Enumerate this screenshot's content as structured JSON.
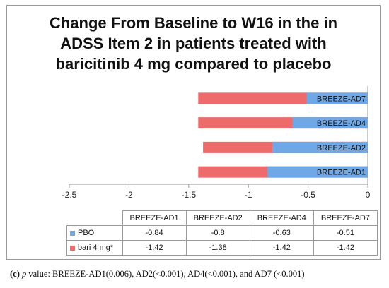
{
  "title_lines": [
    "Change From Baseline to W16 in the in",
    "ADSS Item 2 in patients treated with",
    "baricitinib 4 mg compared to placebo"
  ],
  "colors": {
    "pbo": "#6fa8e6",
    "bari": "#ee6b6b",
    "axis": "#9a9a9a"
  },
  "chart_data": {
    "type": "bar",
    "orientation": "horizontal",
    "overlaid": true,
    "categories": [
      "BREEZE-AD1",
      "BREEZE-AD2",
      "BREEZE-AD4",
      "BREEZE-AD7"
    ],
    "series": [
      {
        "name": "PBO",
        "values": [
          -0.84,
          -0.8,
          -0.63,
          -0.51
        ]
      },
      {
        "name": "bari 4 mg*",
        "values": [
          -1.42,
          -1.38,
          -1.42,
          -1.42
        ]
      }
    ],
    "xlim": [
      -2.5,
      0
    ],
    "xticks": [
      "-2.5",
      "-2",
      "-1.5",
      "-1",
      "-0.5",
      "0"
    ],
    "grid": false,
    "legend": "data table below chart"
  },
  "table": {
    "columns": [
      "BREEZE-AD1",
      "BREEZE-AD2",
      "BREEZE-AD4",
      "BREEZE-AD7"
    ],
    "rows": [
      {
        "label": "PBO",
        "values": [
          "-0.84",
          "-0.8",
          "-0.63",
          "-0.51"
        ]
      },
      {
        "label": "bari 4 mg*",
        "values": [
          "-1.42",
          "-1.38",
          "-1.42",
          "-1.42"
        ]
      }
    ]
  },
  "caption": {
    "letter": "(c)",
    "p_label": "p",
    "text": " value: BREEZE-AD1(0.006), AD2(<0.001), AD4(<0.001), and AD7 (<0.001)"
  }
}
